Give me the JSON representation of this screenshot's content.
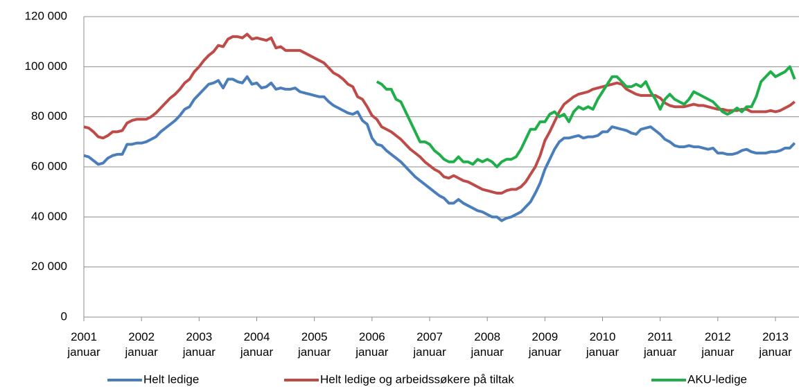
{
  "chart_data": {
    "type": "line",
    "categories": [
      "2001\njanuar",
      null,
      null,
      null,
      null,
      null,
      null,
      null,
      null,
      null,
      null,
      null,
      "2002\njanuar",
      null,
      null,
      null,
      null,
      null,
      null,
      null,
      null,
      null,
      null,
      null,
      "2003\njanuar",
      null,
      null,
      null,
      null,
      null,
      null,
      null,
      null,
      null,
      null,
      null,
      "2004\njanuar",
      null,
      null,
      null,
      null,
      null,
      null,
      null,
      null,
      null,
      null,
      null,
      "2005\njanuar",
      null,
      null,
      null,
      null,
      null,
      null,
      null,
      null,
      null,
      null,
      null,
      "2006\njanuar",
      null,
      null,
      null,
      null,
      null,
      null,
      null,
      null,
      null,
      null,
      null,
      "2007\njanuar",
      null,
      null,
      null,
      null,
      null,
      null,
      null,
      null,
      null,
      null,
      null,
      "2008\njanuar",
      null,
      null,
      null,
      null,
      null,
      null,
      null,
      null,
      null,
      null,
      null,
      "2009\njanuar",
      null,
      null,
      null,
      null,
      null,
      null,
      null,
      null,
      null,
      null,
      null,
      "2010\njanuar",
      null,
      null,
      null,
      null,
      null,
      null,
      null,
      null,
      null,
      null,
      null,
      "2011\njanuar",
      null,
      null,
      null,
      null,
      null,
      null,
      null,
      null,
      null,
      null,
      null,
      "2012\njanuar",
      null,
      null,
      null,
      null,
      null,
      null,
      null,
      null,
      null,
      null,
      null,
      "2013\njanuar",
      null,
      null,
      null,
      null
    ],
    "series": [
      {
        "name": "Helt ledige",
        "color": "#4a7ebb",
        "values": [
          64500,
          64000,
          62500,
          61000,
          61500,
          63500,
          64500,
          65000,
          65000,
          69000,
          69000,
          69500,
          69500,
          70000,
          71000,
          72000,
          74000,
          75500,
          77000,
          78500,
          80500,
          83000,
          84000,
          87000,
          89000,
          91000,
          93000,
          93500,
          94500,
          91500,
          95000,
          95000,
          94000,
          93500,
          96000,
          93000,
          93500,
          91500,
          92000,
          93500,
          91000,
          91500,
          91000,
          91000,
          91500,
          90000,
          89500,
          89000,
          88500,
          88000,
          88000,
          86000,
          84500,
          83500,
          82500,
          81500,
          81000,
          82000,
          78500,
          77000,
          71500,
          69000,
          68500,
          66500,
          65000,
          63500,
          62000,
          60000,
          58000,
          56000,
          54500,
          53000,
          51500,
          50000,
          48500,
          47500,
          45500,
          45500,
          47000,
          45500,
          44500,
          43500,
          42500,
          42000,
          41000,
          40000,
          40000,
          38500,
          39500,
          40000,
          41000,
          42000,
          44000,
          46000,
          49500,
          53500,
          59000,
          63000,
          67000,
          70000,
          71500,
          71500,
          72000,
          72500,
          71500,
          72000,
          72000,
          72500,
          74000,
          74000,
          76000,
          75500,
          75000,
          74500,
          73500,
          73000,
          75000,
          75500,
          76000,
          74500,
          73000,
          71000,
          70000,
          68500,
          68000,
          68000,
          68500,
          68000,
          68000,
          67500,
          67000,
          67500,
          65500,
          65500,
          65000,
          65000,
          65500,
          66500,
          67000,
          66000,
          65500,
          65500,
          65500,
          66000,
          66000,
          66500,
          67500,
          67500,
          69500
        ]
      },
      {
        "name": "Helt ledige og arbeidssøkere på tiltak",
        "color": "#be4b48",
        "values": [
          76000,
          75500,
          74000,
          72000,
          71500,
          72500,
          74000,
          74000,
          74500,
          77500,
          78500,
          79000,
          79000,
          79000,
          80000,
          81500,
          83500,
          85500,
          87500,
          89000,
          91000,
          93500,
          95000,
          98000,
          100000,
          102500,
          104500,
          106000,
          108500,
          108000,
          111000,
          112000,
          112000,
          111500,
          113000,
          111000,
          111500,
          111000,
          110500,
          111500,
          107500,
          108000,
          106500,
          106500,
          106500,
          106500,
          105500,
          104500,
          103500,
          102500,
          101500,
          99500,
          97500,
          96500,
          95000,
          93000,
          92000,
          88000,
          87000,
          84000,
          80500,
          79000,
          76000,
          75000,
          74000,
          72500,
          71000,
          69000,
          67000,
          65500,
          64000,
          62000,
          60500,
          59000,
          58000,
          56000,
          55500,
          56500,
          55500,
          54500,
          54000,
          53000,
          52000,
          51000,
          50500,
          50000,
          49500,
          49500,
          50500,
          51000,
          51000,
          52000,
          54000,
          57000,
          60000,
          64500,
          70500,
          74000,
          78000,
          82000,
          85000,
          86500,
          88000,
          89000,
          89500,
          90000,
          91000,
          91500,
          92000,
          92500,
          93000,
          93500,
          93000,
          91000,
          90000,
          89000,
          88500,
          88500,
          88500,
          88500,
          87500,
          85500,
          84500,
          84000,
          84000,
          84000,
          84500,
          85000,
          84500,
          84500,
          84000,
          83500,
          83000,
          83000,
          82500,
          82500,
          82500,
          83000,
          83000,
          82000,
          82000,
          82000,
          82000,
          82500,
          82000,
          82500,
          83500,
          84500,
          86000
        ]
      },
      {
        "name": "AKU-ledige",
        "color": "#1fae4a",
        "values": [
          null,
          null,
          null,
          null,
          null,
          null,
          null,
          null,
          null,
          null,
          null,
          null,
          null,
          null,
          null,
          null,
          null,
          null,
          null,
          null,
          null,
          null,
          null,
          null,
          null,
          null,
          null,
          null,
          null,
          null,
          null,
          null,
          null,
          null,
          null,
          null,
          null,
          null,
          null,
          null,
          null,
          null,
          null,
          null,
          null,
          null,
          null,
          null,
          null,
          null,
          null,
          null,
          null,
          null,
          null,
          null,
          null,
          null,
          null,
          null,
          null,
          94000,
          93000,
          91000,
          91000,
          87000,
          86000,
          82000,
          78000,
          74000,
          70000,
          70000,
          69000,
          66500,
          65000,
          63000,
          62000,
          62000,
          64000,
          62000,
          62000,
          61000,
          63000,
          62000,
          63000,
          62000,
          60000,
          62000,
          63000,
          63000,
          64000,
          67000,
          71000,
          75000,
          75000,
          78000,
          78000,
          81000,
          82000,
          80000,
          81000,
          78000,
          82000,
          84000,
          83000,
          84000,
          83000,
          87000,
          90000,
          93000,
          96000,
          96000,
          94000,
          92000,
          92000,
          93000,
          92000,
          94000,
          90000,
          87000,
          83000,
          87000,
          89000,
          87000,
          86000,
          85000,
          87000,
          90000,
          89000,
          88000,
          87000,
          86000,
          84000,
          82000,
          81000,
          82000,
          83500,
          82000,
          84000,
          84000,
          88000,
          94000,
          96000,
          98000,
          96000,
          97000,
          98000,
          100000,
          95000
        ]
      }
    ],
    "ylim": [
      0,
      120000
    ],
    "yticks": [
      0,
      {
        "value": 20000,
        "label": "20 000"
      },
      {
        "value": 40000,
        "label": "40 000"
      },
      {
        "value": 60000,
        "label": "60 000"
      },
      {
        "value": 80000,
        "label": "80 000"
      },
      {
        "value": 100000,
        "label": "100 000"
      },
      {
        "value": 120000,
        "label": "120 000"
      }
    ],
    "grid": true,
    "legend": "bottom"
  }
}
